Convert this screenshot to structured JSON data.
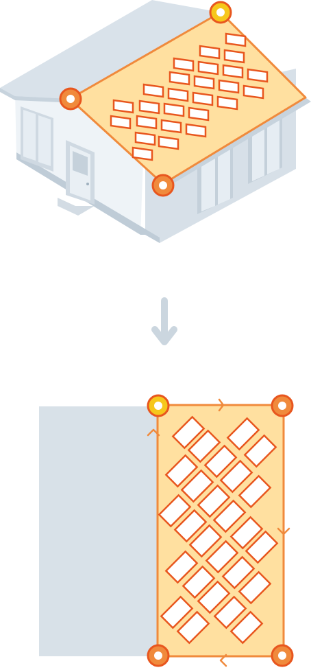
{
  "colors": {
    "roof_fill": "#FFE0A0",
    "roof_stroke": "#F08A3C",
    "panel_stroke": "#E8561E",
    "corner_primary": "#F6C71B",
    "corner_secondary": "#F08A3C",
    "house_wall": "#EEF3F7",
    "house_shade": "#D8E1E8",
    "house_dark": "#BECBD6",
    "arrow": "#CBD6DF",
    "wall_rect": "#D8E1E8"
  },
  "icons": {
    "direction_arrow": "arrow-down-icon",
    "edge_arrows": "chevron-icon",
    "corner_marker": "ring-marker-icon"
  },
  "diagram": {
    "top": "isometric-house-with-selected-roof-plane",
    "bottom": "flattened-roof-plane-with-solar-panel-layout",
    "panel_count_bottom": 30
  }
}
